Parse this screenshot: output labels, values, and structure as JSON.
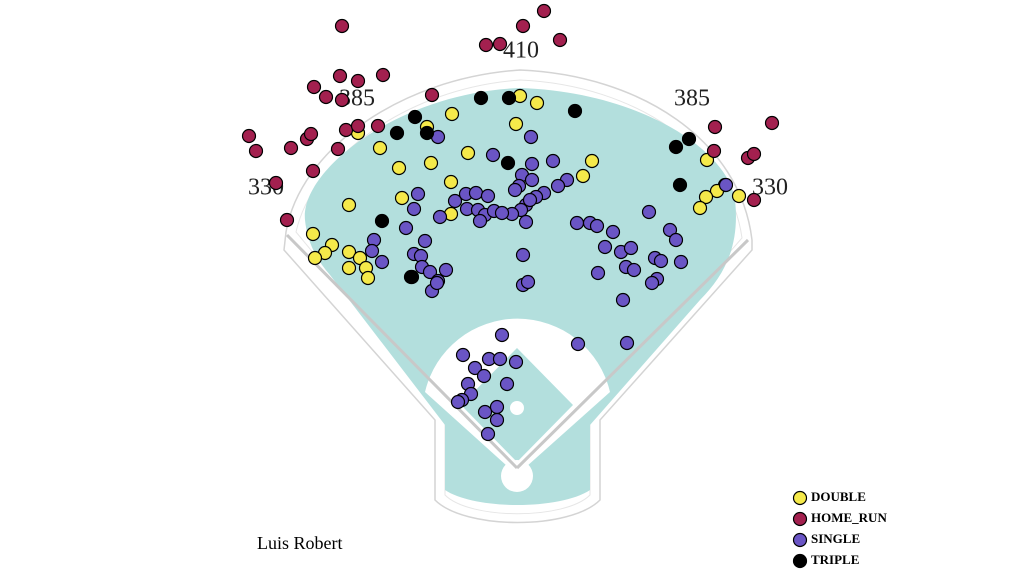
{
  "chart_data": {
    "type": "scatter",
    "title": "Luis Robert",
    "annotations": [
      330,
      385,
      410,
      385,
      330
    ],
    "series": [
      {
        "name": "DOUBLE",
        "color": "#f5e94a",
        "x": [
          3,
          20,
          -65,
          -90,
          -159,
          -1,
          -137,
          -49,
          -86,
          -118,
          75,
          66,
          -66,
          -115,
          190,
          208,
          200,
          189,
          183,
          222,
          -168,
          -66,
          -204,
          -185,
          -192,
          -202,
          -168,
          -157,
          -168,
          -151,
          -149
        ],
        "values": [
          372,
          365,
          354,
          341,
          335,
          344,
          320,
          315,
          305,
          300,
          307,
          292,
          286,
          270,
          308,
          283,
          277,
          271,
          260,
          272,
          263,
          254,
          234,
          223,
          215,
          210,
          216,
          210,
          200,
          200,
          190
        ]
      },
      {
        "name": "HOME_RUN",
        "color": "#a3204f",
        "x": [
          -175,
          27,
          6,
          -31,
          -17,
          43,
          -134,
          -177,
          -159,
          -203,
          -191,
          -175,
          -85,
          -268,
          -261,
          -226,
          -210,
          -206,
          -171,
          -159,
          -139,
          -179,
          -204,
          -241,
          -230,
          198,
          255,
          231,
          237,
          197,
          237
        ],
        "values": [
          442,
          457,
          442,
          423,
          424,
          428,
          393,
          392,
          387,
          381,
          371,
          368,
          373,
          332,
          317,
          320,
          329,
          334,
          338,
          342,
          342,
          319,
          297,
          285,
          248,
          341,
          345,
          310,
          314,
          317,
          268
        ]
      },
      {
        "name": "SINGLE",
        "color": "#6a55c5",
        "x": [
          14,
          -79,
          -24,
          15,
          36,
          5,
          2,
          -2,
          15,
          50,
          41,
          27,
          19,
          9,
          4,
          -5,
          9,
          -99,
          -103,
          -51,
          -41,
          -29,
          -62,
          -50,
          -39,
          -32,
          -23,
          -15,
          -37,
          -77,
          -111,
          -143,
          -145,
          -135,
          -103,
          -96,
          -92,
          -95,
          -87,
          -79,
          -71,
          -85,
          -80,
          -105,
          60,
          73,
          80,
          96,
          88,
          104,
          114,
          109,
          117,
          138,
          144,
          140,
          135,
          132,
          153,
          159,
          164,
          81,
          6,
          6,
          11,
          106,
          61,
          110,
          -15,
          -54,
          -28,
          -17,
          -1,
          -42,
          -33,
          -10,
          -49,
          -46,
          -55,
          -59,
          -20,
          -32,
          -20,
          -29,
          209,
          13
        ],
        "values": [
          331,
          331,
          313,
          304,
          307,
          293,
          282,
          278,
          288,
          288,
          282,
          275,
          271,
          263,
          258,
          254,
          246,
          274,
          259,
          274,
          275,
          272,
          267,
          259,
          258,
          253,
          257,
          255,
          247,
          251,
          240,
          228,
          217,
          206,
          214,
          212,
          227,
          201,
          196,
          187,
          198,
          177,
          185,
          191,
          245,
          245,
          242,
          236,
          221,
          216,
          220,
          201,
          198,
          210,
          207,
          189,
          185,
          256,
          238,
          228,
          206,
          195,
          213,
          183,
          186,
          168,
          124,
          125,
          133,
          113,
          109,
          109,
          106,
          100,
          92,
          84,
          84,
          74,
          68,
          66,
          61,
          56,
          48,
          34,
          283,
          268
        ]
      },
      {
        "name": "TRIPLE",
        "color": "#000000",
        "x": [
          -36,
          -8,
          58,
          -102,
          -120,
          -90,
          -9,
          172,
          159,
          163,
          -135,
          -106
        ],
        "values": [
          370,
          370,
          357,
          351,
          335,
          335,
          305,
          329,
          321,
          283,
          247,
          191
        ]
      }
    ]
  }
}
